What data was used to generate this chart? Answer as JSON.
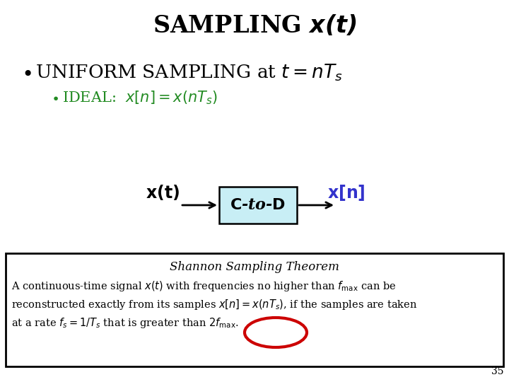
{
  "bg_color": "#ffffff",
  "green_color": "#228B22",
  "blue_color": "#3333cc",
  "circle_color": "#cc0000",
  "box_fill": "#c8eef5",
  "box_edge": "#000000",
  "page_number": "35"
}
